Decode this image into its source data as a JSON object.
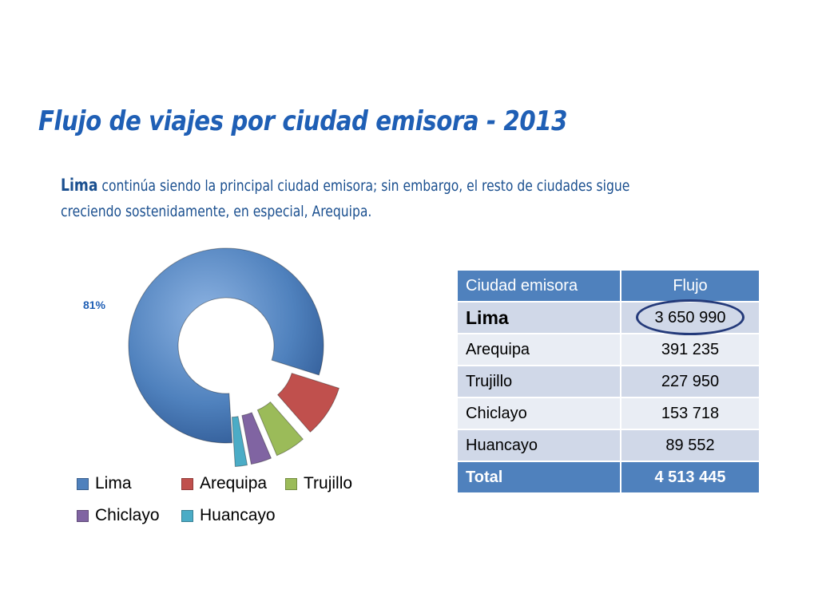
{
  "title": "Flujo de viajes por ciudad emisora - 2013",
  "subtitle": {
    "lead": "Lima",
    "rest": " continúa siendo la principal ciudad emisora; sin embargo, el resto de ciudades sigue creciendo sostenidamente, en especial, Arequipa."
  },
  "table": {
    "headers": [
      "Ciudad emisora",
      "Flujo"
    ],
    "rows": [
      {
        "city": "Lima",
        "value": "3 650 990"
      },
      {
        "city": "Arequipa",
        "value": "391 235"
      },
      {
        "city": "Trujillo",
        "value": "227 950"
      },
      {
        "city": "Chiclayo",
        "value": "153 718"
      },
      {
        "city": "Huancayo",
        "value": "89 552"
      }
    ],
    "total": {
      "label": "Total",
      "value": "4 513 445"
    }
  },
  "chart_data": {
    "type": "pie",
    "variant": "exploded-doughnut",
    "title": "",
    "categories": [
      "Lima",
      "Arequipa",
      "Trujillo",
      "Chiclayo",
      "Huancayo"
    ],
    "values": [
      3650990,
      391235,
      227950,
      153718,
      89552
    ],
    "colors": [
      "#4f81bd",
      "#c0504d",
      "#9bbb59",
      "#8064a2",
      "#4bacc6"
    ],
    "data_labels": [
      {
        "category": "Lima",
        "text": "81%"
      }
    ],
    "legend": {
      "position": "bottom",
      "entries": [
        "Lima",
        "Arequipa",
        "Trujillo",
        "Chiclayo",
        "Huancayo"
      ]
    }
  }
}
